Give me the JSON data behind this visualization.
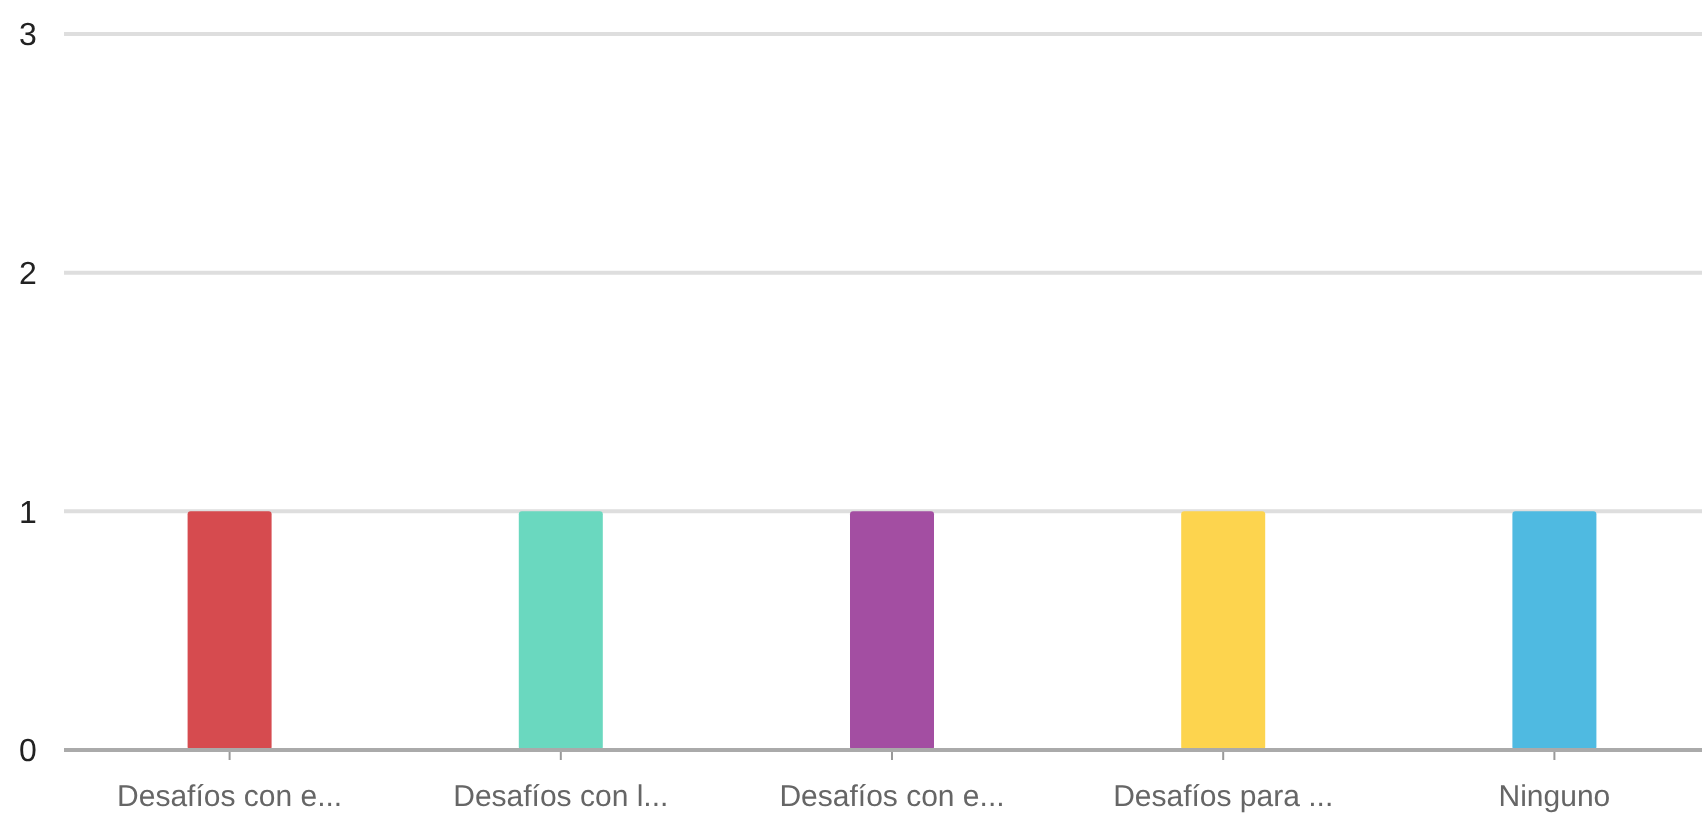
{
  "chart_data": {
    "type": "bar",
    "categories": [
      "Desafíos con e...",
      "Desafíos con l...",
      "Desafíos con e...",
      "Desafíos para ...",
      "Ninguno"
    ],
    "values": [
      1,
      1,
      1,
      1,
      1
    ],
    "colors": [
      "#d64b4f",
      "#6ad8bf",
      "#a34ea2",
      "#fdd44e",
      "#4fbae1"
    ],
    "ylim": [
      0,
      3
    ],
    "yticks": [
      0,
      1,
      2,
      3
    ],
    "grid": "y"
  }
}
